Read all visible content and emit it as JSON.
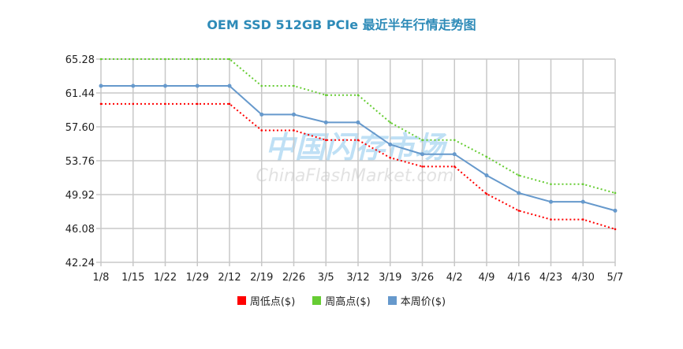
{
  "chart_data": {
    "type": "line",
    "title": "OEM SSD 512GB PCIe 最近半年行情走势图",
    "watermark": [
      "中国闪存市场",
      "ChinaFlashMarket.com"
    ],
    "categories": [
      "1/8",
      "1/15",
      "1/22",
      "1/29",
      "2/12",
      "2/19",
      "2/26",
      "3/5",
      "3/12",
      "3/19",
      "3/26",
      "4/2",
      "4/9",
      "4/16",
      "4/23",
      "4/30",
      "5/7"
    ],
    "y_ticks": [
      "65.28",
      "61.44",
      "57.60",
      "53.76",
      "49.92",
      "46.08",
      "42.24"
    ],
    "ylim": [
      42.24,
      65.28
    ],
    "grid": true,
    "legend_position": "bottom",
    "series": [
      {
        "name": "周低点($)",
        "color": "#ff0000",
        "style": "dotted",
        "values": [
          60.2,
          60.2,
          60.2,
          60.2,
          60.2,
          57.2,
          57.2,
          56.1,
          56.1,
          54.1,
          53.1,
          53.1,
          50.0,
          48.1,
          47.1,
          47.1,
          46.0
        ]
      },
      {
        "name": "周高点($)",
        "color": "#66cc33",
        "style": "dotted",
        "values": [
          65.28,
          65.28,
          65.28,
          65.28,
          65.28,
          62.24,
          62.24,
          61.2,
          61.2,
          58.1,
          56.1,
          56.1,
          54.2,
          52.1,
          51.1,
          51.1,
          50.1
        ]
      },
      {
        "name": "本周价($)",
        "color": "#6699cc",
        "style": "solid",
        "values": [
          62.24,
          62.24,
          62.24,
          62.24,
          62.24,
          59.0,
          59.0,
          58.1,
          58.1,
          55.6,
          54.5,
          54.5,
          52.1,
          50.1,
          49.1,
          49.1,
          48.1
        ]
      }
    ]
  }
}
